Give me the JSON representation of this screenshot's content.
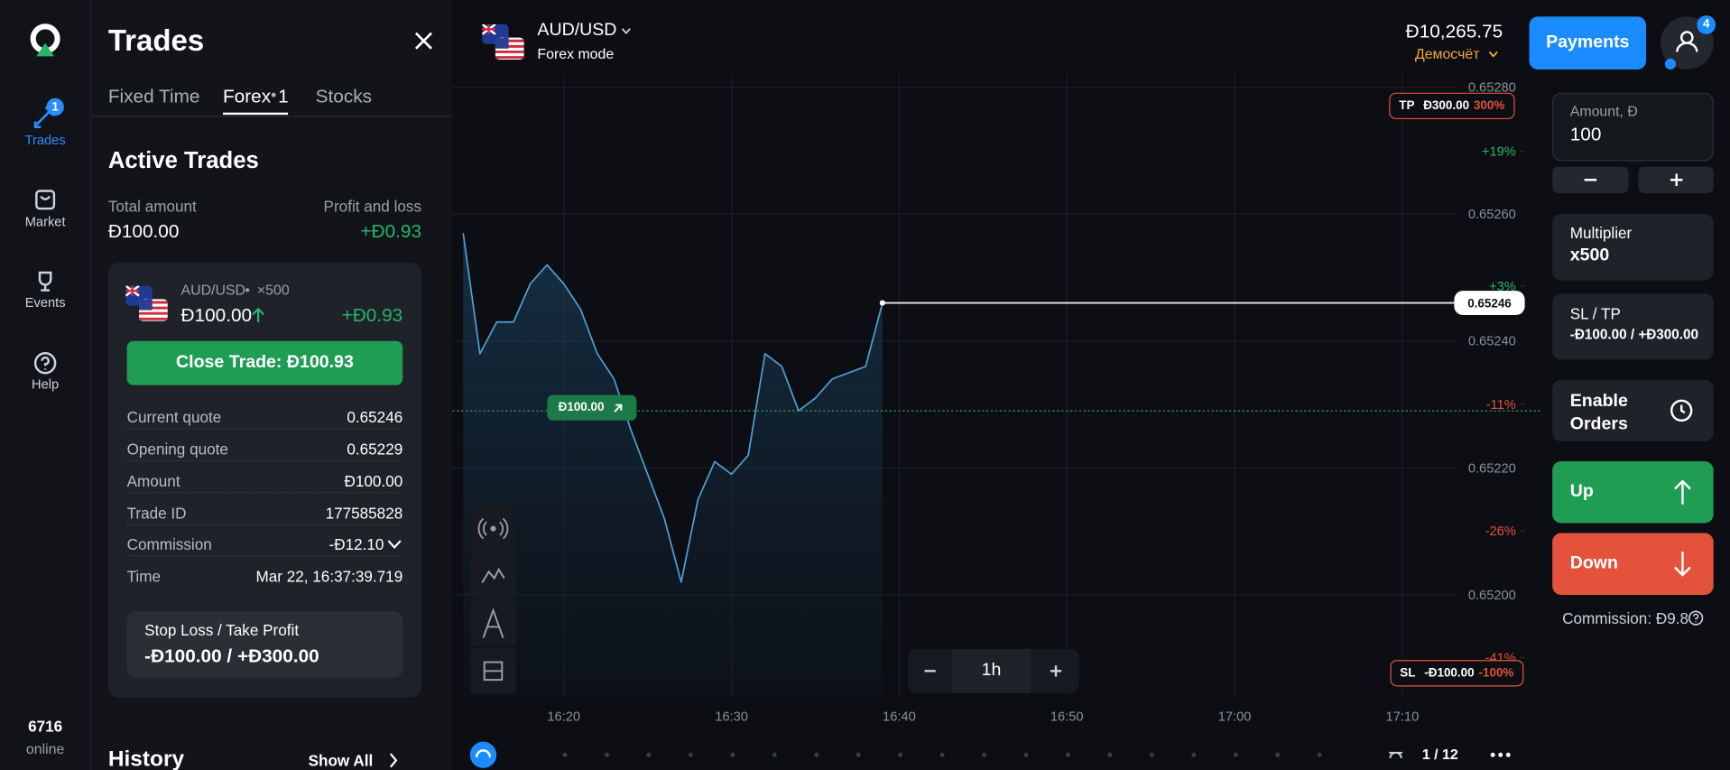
{
  "nav": {
    "items": [
      {
        "label": "Trades",
        "badge": "1"
      },
      {
        "label": "Market"
      },
      {
        "label": "Events"
      },
      {
        "label": "Help"
      }
    ],
    "online_count": "6716",
    "online_label": "online"
  },
  "trades_panel": {
    "title": "Trades",
    "tabs": [
      {
        "label": "Fixed Time"
      },
      {
        "label": "Forex",
        "count": "1"
      },
      {
        "label": "Stocks"
      }
    ],
    "section_title": "Active Trades",
    "total_amount_label": "Total amount",
    "total_amount": "Đ100.00",
    "pnl_label": "Profit and loss",
    "pnl": "+Đ0.93",
    "trade": {
      "pair": "AUD/USD",
      "multiplier": "×500",
      "amount": "Đ100.00",
      "pnl": "+Đ0.93",
      "close_button": "Close Trade: Đ100.93",
      "details": [
        [
          "Current quote",
          "0.65246"
        ],
        [
          "Opening quote",
          "0.65229"
        ],
        [
          "Amount",
          "Đ100.00"
        ],
        [
          "Trade ID",
          "177585828"
        ],
        [
          "Commission",
          "-Đ12.10"
        ],
        [
          "Time",
          "Mar 22, 16:37:39.719"
        ]
      ],
      "sl_tp_label": "Stop Loss / Take Profit",
      "sl_tp_value": "-Đ100.00 / +Đ300.00"
    },
    "history_title": "History",
    "show_all": "Show All"
  },
  "header": {
    "pair": "AUD/USD",
    "mode": "Forex mode",
    "balance": "Đ10,265.75",
    "account": "Демосчёт",
    "payments_button": "Payments",
    "notifications_badge": "4"
  },
  "order_panel": {
    "amount_label": "Amount, Đ",
    "amount": "100",
    "multiplier_label": "Multiplier",
    "multiplier": "x500",
    "sl_tp_label": "SL / TP",
    "sl_tp_value": "-Đ100.00 / +Đ300.00",
    "orders_button": "Enable Orders",
    "up_button": "Up",
    "down_button": "Down",
    "commission": "Commission: Đ9.8"
  },
  "chart_data": {
    "type": "line",
    "x": [
      "16:14",
      "16:15",
      "16:16",
      "16:17",
      "16:18",
      "16:19",
      "16:20",
      "16:21",
      "16:22",
      "16:23",
      "16:24",
      "16:25",
      "16:26",
      "16:27",
      "16:28",
      "16:29",
      "16:30",
      "16:31",
      "16:32",
      "16:33",
      "16:34",
      "16:35",
      "16:36",
      "16:37",
      "16:38",
      "16:39"
    ],
    "values": [
      0.65257,
      0.65238,
      0.65243,
      0.65243,
      0.65249,
      0.65252,
      0.65249,
      0.65245,
      0.65238,
      0.65234,
      0.65226,
      0.65219,
      0.65212,
      0.65202,
      0.65215,
      0.65221,
      0.65219,
      0.65222,
      0.65238,
      0.65236,
      0.65229,
      0.65231,
      0.65234,
      0.65235,
      0.65236,
      0.65246
    ],
    "color": "#4f9fd6",
    "xlim": [
      "16:13",
      "17:18"
    ],
    "xticks": [
      "16:20",
      "16:30",
      "16:40",
      "16:50",
      "17:00",
      "17:10"
    ],
    "ylim": [
      0.65184,
      0.65282
    ],
    "yticks": [
      {
        "value": 0.6528,
        "label": "0.65280"
      },
      {
        "value": 0.6526,
        "label": "0.65260"
      },
      {
        "value": 0.6524,
        "label": "0.65240"
      },
      {
        "value": 0.6522,
        "label": "0.65220"
      },
      {
        "value": 0.652,
        "label": "0.65200"
      }
    ],
    "y2lim": [
      -45.6,
      28.1
    ],
    "y2ticks": [
      {
        "value": 19,
        "label": "+19%"
      },
      {
        "value": 3,
        "label": "+3%"
      },
      {
        "value": -11,
        "label": "-11%"
      },
      {
        "value": -26,
        "label": "-26%"
      },
      {
        "value": -41,
        "label": "-41%"
      }
    ],
    "grid": true,
    "current_price": 0.65246,
    "opening_price": 0.65229,
    "opening_label": "Đ100.00",
    "take_profit": {
      "tag": "TP",
      "amount": "Đ300.00",
      "percent": "300%"
    },
    "stop_loss": {
      "tag": "SL",
      "amount": "-Đ100.00",
      "percent": "-100%"
    },
    "interval": "1h",
    "page_indicator": "1 / 12"
  }
}
